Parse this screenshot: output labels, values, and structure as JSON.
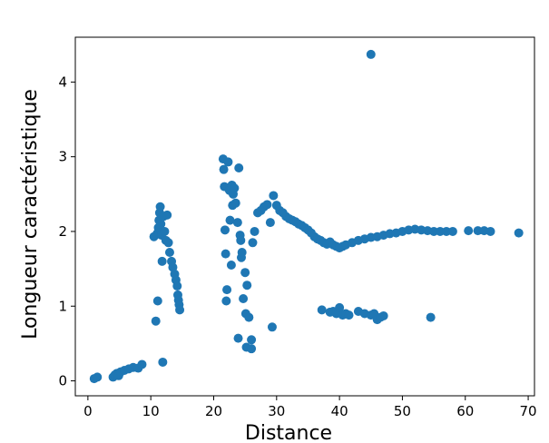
{
  "chart_data": {
    "type": "scatter",
    "title": "",
    "xlabel": "Distance",
    "ylabel": "Longueur caractéristique",
    "xlim": [
      -2,
      71
    ],
    "ylim": [
      -0.2,
      4.6
    ],
    "xticks": [
      0,
      10,
      20,
      30,
      40,
      50,
      60,
      70
    ],
    "yticks": [
      0,
      1,
      2,
      3,
      4
    ],
    "grid": false,
    "legend": "none",
    "marker_color": "#1f77b4",
    "series": [
      {
        "points": [
          [
            1.0,
            0.03
          ],
          [
            1.5,
            0.05
          ],
          [
            4.0,
            0.05
          ],
          [
            4.3,
            0.08
          ],
          [
            4.6,
            0.1
          ],
          [
            4.9,
            0.07
          ],
          [
            5.2,
            0.12
          ],
          [
            5.8,
            0.14
          ],
          [
            6.5,
            0.16
          ],
          [
            7.2,
            0.18
          ],
          [
            8.0,
            0.17
          ],
          [
            8.6,
            0.22
          ],
          [
            10.5,
            1.93
          ],
          [
            10.8,
            0.8
          ],
          [
            11.0,
            1.97
          ],
          [
            11.1,
            1.07
          ],
          [
            11.2,
            2.05
          ],
          [
            11.3,
            2.15
          ],
          [
            11.4,
            2.25
          ],
          [
            11.5,
            2.33
          ],
          [
            11.6,
            2.1
          ],
          [
            11.7,
            1.95
          ],
          [
            11.8,
            1.6
          ],
          [
            11.9,
            0.25
          ],
          [
            12.0,
            2.2
          ],
          [
            12.2,
            2.0
          ],
          [
            12.4,
            1.88
          ],
          [
            12.6,
            2.22
          ],
          [
            12.8,
            1.85
          ],
          [
            13.0,
            1.72
          ],
          [
            13.3,
            1.6
          ],
          [
            13.5,
            1.52
          ],
          [
            13.8,
            1.43
          ],
          [
            14.0,
            1.35
          ],
          [
            14.2,
            1.27
          ],
          [
            14.3,
            1.15
          ],
          [
            14.4,
            1.08
          ],
          [
            14.5,
            1.02
          ],
          [
            14.6,
            0.95
          ],
          [
            21.5,
            2.97
          ],
          [
            21.6,
            2.83
          ],
          [
            21.7,
            2.6
          ],
          [
            21.8,
            2.02
          ],
          [
            21.9,
            1.7
          ],
          [
            22.0,
            1.07
          ],
          [
            22.1,
            1.22
          ],
          [
            22.3,
            2.93
          ],
          [
            22.5,
            2.55
          ],
          [
            22.6,
            2.15
          ],
          [
            22.8,
            1.55
          ],
          [
            22.9,
            2.62
          ],
          [
            23.0,
            2.35
          ],
          [
            23.1,
            2.5
          ],
          [
            23.3,
            2.58
          ],
          [
            23.5,
            2.38
          ],
          [
            23.8,
            2.12
          ],
          [
            23.9,
            0.57
          ],
          [
            24.0,
            2.85
          ],
          [
            24.2,
            1.95
          ],
          [
            24.3,
            1.88
          ],
          [
            24.4,
            1.65
          ],
          [
            24.5,
            1.72
          ],
          [
            24.7,
            1.1
          ],
          [
            25.0,
            1.45
          ],
          [
            25.1,
            0.9
          ],
          [
            25.2,
            0.45
          ],
          [
            25.3,
            1.28
          ],
          [
            25.6,
            0.85
          ],
          [
            26.0,
            0.43
          ],
          [
            26.0,
            0.55
          ],
          [
            26.2,
            1.85
          ],
          [
            26.5,
            2.0
          ],
          [
            27.0,
            2.25
          ],
          [
            27.5,
            2.28
          ],
          [
            28.0,
            2.33
          ],
          [
            28.5,
            2.36
          ],
          [
            29.0,
            2.12
          ],
          [
            29.3,
            0.72
          ],
          [
            29.5,
            2.48
          ],
          [
            30.0,
            2.35
          ],
          [
            30.5,
            2.28
          ],
          [
            31.0,
            2.25
          ],
          [
            31.5,
            2.2
          ],
          [
            32.0,
            2.17
          ],
          [
            32.5,
            2.15
          ],
          [
            33.0,
            2.13
          ],
          [
            33.5,
            2.1
          ],
          [
            34.0,
            2.08
          ],
          [
            34.5,
            2.05
          ],
          [
            35.0,
            2.02
          ],
          [
            35.5,
            1.98
          ],
          [
            36.0,
            1.93
          ],
          [
            36.5,
            1.9
          ],
          [
            37.0,
            1.88
          ],
          [
            37.2,
            0.95
          ],
          [
            37.5,
            1.85
          ],
          [
            38.0,
            1.83
          ],
          [
            38.5,
            1.86
          ],
          [
            39.0,
            1.82
          ],
          [
            39.5,
            1.8
          ],
          [
            40.0,
            1.78
          ],
          [
            40.5,
            1.8
          ],
          [
            41.0,
            1.82
          ],
          [
            42.0,
            1.85
          ],
          [
            43.0,
            1.88
          ],
          [
            44.0,
            1.9
          ],
          [
            45.0,
            1.92
          ],
          [
            46.0,
            1.93
          ],
          [
            47.0,
            1.95
          ],
          [
            48.0,
            1.97
          ],
          [
            49.0,
            1.98
          ],
          [
            50.0,
            2.0
          ],
          [
            51.0,
            2.02
          ],
          [
            52.0,
            2.03
          ],
          [
            53.0,
            2.02
          ],
          [
            54.0,
            2.01
          ],
          [
            55.0,
            2.0
          ],
          [
            56.0,
            2.0
          ],
          [
            57.0,
            2.0
          ],
          [
            58.0,
            2.0
          ],
          [
            60.5,
            2.01
          ],
          [
            62.0,
            2.01
          ],
          [
            63.0,
            2.01
          ],
          [
            64.0,
            2.0
          ],
          [
            68.5,
            1.98
          ],
          [
            38.5,
            0.92
          ],
          [
            39.0,
            0.93
          ],
          [
            39.5,
            0.9
          ],
          [
            40.0,
            0.98
          ],
          [
            40.5,
            0.88
          ],
          [
            41.0,
            0.9
          ],
          [
            41.5,
            0.88
          ],
          [
            43.0,
            0.93
          ],
          [
            44.0,
            0.9
          ],
          [
            45.0,
            0.88
          ],
          [
            45.5,
            0.9
          ],
          [
            46.0,
            0.82
          ],
          [
            46.5,
            0.85
          ],
          [
            47.0,
            0.87
          ],
          [
            54.5,
            0.85
          ],
          [
            45.0,
            4.37
          ]
        ]
      }
    ]
  }
}
